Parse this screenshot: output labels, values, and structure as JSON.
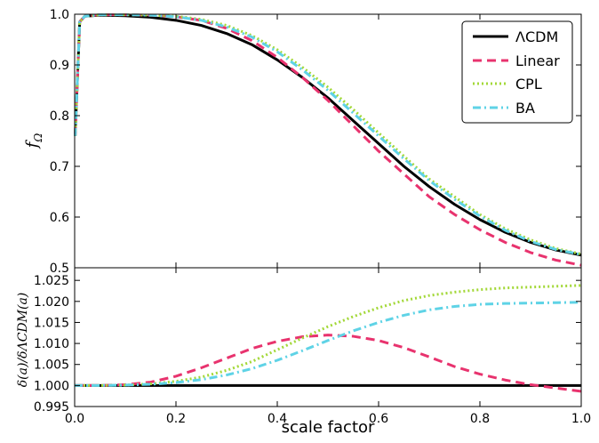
{
  "chart_data": [
    {
      "type": "line",
      "panel": "top",
      "ylabel": "f",
      "ylabel_subscript": "Ω",
      "xlim": [
        0,
        1
      ],
      "ylim": [
        0.5,
        1.0
      ],
      "y_ticks": [
        "0.5",
        "0.6",
        "0.7",
        "0.8",
        "0.9",
        "1.0"
      ],
      "legend_position": "top-right",
      "series": [
        {
          "name": "ΛCDM",
          "color": "#000000",
          "style": "solid",
          "x": [
            0.001,
            0.01,
            0.02,
            0.05,
            0.1,
            0.15,
            0.2,
            0.25,
            0.3,
            0.35,
            0.4,
            0.45,
            0.5,
            0.55,
            0.6,
            0.65,
            0.7,
            0.75,
            0.8,
            0.85,
            0.9,
            0.95,
            1.0
          ],
          "y": [
            0.76,
            0.985,
            0.996,
            0.998,
            0.997,
            0.994,
            0.988,
            0.978,
            0.962,
            0.94,
            0.91,
            0.875,
            0.835,
            0.79,
            0.745,
            0.7,
            0.66,
            0.625,
            0.595,
            0.57,
            0.55,
            0.535,
            0.525
          ]
        },
        {
          "name": "Linear",
          "color": "#e8336e",
          "style": "dashed",
          "x": [
            0.001,
            0.01,
            0.02,
            0.05,
            0.1,
            0.15,
            0.2,
            0.25,
            0.3,
            0.35,
            0.4,
            0.45,
            0.5,
            0.55,
            0.6,
            0.65,
            0.7,
            0.75,
            0.8,
            0.85,
            0.9,
            0.95,
            1.0
          ],
          "y": [
            0.76,
            0.985,
            0.996,
            0.999,
            0.999,
            0.998,
            0.995,
            0.988,
            0.972,
            0.948,
            0.915,
            0.875,
            0.83,
            0.78,
            0.73,
            0.685,
            0.64,
            0.605,
            0.575,
            0.55,
            0.53,
            0.515,
            0.505
          ]
        },
        {
          "name": "CPL",
          "color": "#a3d838",
          "style": "dotted",
          "x": [
            0.001,
            0.01,
            0.02,
            0.05,
            0.1,
            0.15,
            0.2,
            0.25,
            0.3,
            0.35,
            0.4,
            0.45,
            0.5,
            0.55,
            0.6,
            0.65,
            0.7,
            0.75,
            0.8,
            0.85,
            0.9,
            0.95,
            1.0
          ],
          "y": [
            0.76,
            0.985,
            0.996,
            0.999,
            0.999,
            0.998,
            0.996,
            0.99,
            0.978,
            0.958,
            0.93,
            0.895,
            0.856,
            0.812,
            0.766,
            0.72,
            0.675,
            0.64,
            0.605,
            0.577,
            0.555,
            0.538,
            0.527
          ]
        },
        {
          "name": "BA",
          "color": "#5fd3e6",
          "style": "dashdot",
          "x": [
            0.001,
            0.01,
            0.02,
            0.05,
            0.1,
            0.15,
            0.2,
            0.25,
            0.3,
            0.35,
            0.4,
            0.45,
            0.5,
            0.55,
            0.6,
            0.65,
            0.7,
            0.75,
            0.8,
            0.85,
            0.9,
            0.95,
            1.0
          ],
          "y": [
            0.76,
            0.985,
            0.996,
            0.999,
            0.999,
            0.998,
            0.995,
            0.988,
            0.975,
            0.955,
            0.926,
            0.89,
            0.85,
            0.805,
            0.76,
            0.715,
            0.672,
            0.635,
            0.602,
            0.574,
            0.552,
            0.536,
            0.526
          ]
        }
      ]
    },
    {
      "type": "line",
      "panel": "bottom",
      "ylabel": "δ(a)/δΛCDM(a)",
      "xlabel": "scale factor",
      "xlim": [
        0,
        1
      ],
      "ylim": [
        0.995,
        1.028
      ],
      "x_ticks": [
        "0.0",
        "0.2",
        "0.4",
        "0.6",
        "0.8",
        "1.0"
      ],
      "y_ticks": [
        "0.995",
        "1.000",
        "1.005",
        "1.010",
        "1.015",
        "1.020",
        "1.025"
      ],
      "series": [
        {
          "name": "ΛCDM",
          "color": "#000000",
          "style": "solid",
          "x": [
            0.0,
            1.0
          ],
          "y": [
            1.0,
            1.0
          ]
        },
        {
          "name": "Linear",
          "color": "#e8336e",
          "style": "dashed",
          "x": [
            0.0,
            0.05,
            0.1,
            0.15,
            0.2,
            0.25,
            0.3,
            0.35,
            0.4,
            0.45,
            0.5,
            0.55,
            0.6,
            0.65,
            0.7,
            0.75,
            0.8,
            0.85,
            0.9,
            0.95,
            1.0
          ],
          "y": [
            1.0,
            1.0,
            1.0002,
            1.0008,
            1.0022,
            1.0042,
            1.0065,
            1.0088,
            1.0105,
            1.0116,
            1.012,
            1.0117,
            1.0107,
            1.009,
            1.0068,
            1.0045,
            1.0027,
            1.0013,
            1.0002,
            0.9994,
            0.9986
          ]
        },
        {
          "name": "CPL",
          "color": "#a3d838",
          "style": "dotted",
          "x": [
            0.0,
            0.05,
            0.1,
            0.15,
            0.2,
            0.25,
            0.3,
            0.35,
            0.4,
            0.45,
            0.5,
            0.55,
            0.6,
            0.65,
            0.7,
            0.75,
            0.8,
            0.85,
            0.9,
            0.95,
            1.0
          ],
          "y": [
            1.0,
            1.0,
            1.0001,
            1.0004,
            1.001,
            1.002,
            1.0036,
            1.0057,
            1.0085,
            1.0113,
            1.014,
            1.0164,
            1.0185,
            1.0202,
            1.0214,
            1.0222,
            1.0228,
            1.0232,
            1.0234,
            1.0236,
            1.0238
          ]
        },
        {
          "name": "BA",
          "color": "#5fd3e6",
          "style": "dashdot",
          "x": [
            0.0,
            0.05,
            0.1,
            0.15,
            0.2,
            0.25,
            0.3,
            0.35,
            0.4,
            0.45,
            0.5,
            0.55,
            0.6,
            0.65,
            0.7,
            0.75,
            0.8,
            0.85,
            0.9,
            0.95,
            1.0
          ],
          "y": [
            1.0,
            1.0,
            1.0001,
            1.0003,
            1.0007,
            1.0014,
            1.0025,
            1.004,
            1.006,
            1.0083,
            1.0107,
            1.013,
            1.015,
            1.0167,
            1.018,
            1.0188,
            1.0193,
            1.0195,
            1.0196,
            1.0197,
            1.0198
          ]
        }
      ]
    }
  ]
}
